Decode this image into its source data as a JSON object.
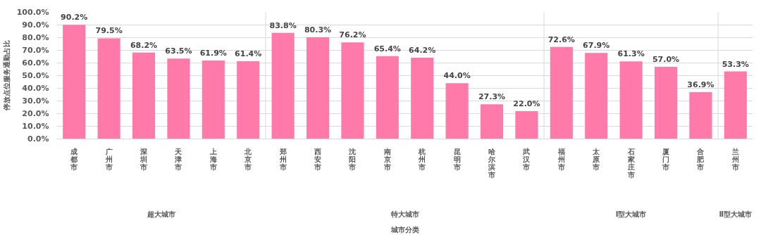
{
  "chart_data": {
    "type": "bar",
    "ylabel": "停放点位服务通勤占比",
    "categories": [
      "成都市",
      "广州市",
      "深圳市",
      "天津市",
      "上海市",
      "北京市",
      "郑州市",
      "西安市",
      "沈阳市",
      "南京市",
      "杭州市",
      "昆明市",
      "哈尔滨市",
      "武汉市",
      "福州市",
      "太原市",
      "石家庄市",
      "厦门市",
      "合肥市",
      "兰州市"
    ],
    "values": [
      90.2,
      79.5,
      68.2,
      63.5,
      61.9,
      61.4,
      83.8,
      80.3,
      76.2,
      65.4,
      64.2,
      44.0,
      27.3,
      22.0,
      72.6,
      67.9,
      61.3,
      57.0,
      36.9,
      53.3
    ],
    "value_labels": [
      "90.2%",
      "79.5%",
      "68.2%",
      "63.5%",
      "61.9%",
      "61.4%",
      "83.8%",
      "80.3%",
      "76.2%",
      "65.4%",
      "64.2%",
      "44.0%",
      "27.3%",
      "22.0%",
      "72.6%",
      "67.9%",
      "61.3%",
      "57.0%",
      "36.9%",
      "53.3%"
    ],
    "color": "#ff7aa8",
    "ylim": [
      0,
      100
    ],
    "yticks": [
      {
        "value": 0,
        "label": "0.0%"
      },
      {
        "value": 10,
        "label": "10.0%"
      },
      {
        "value": 20,
        "label": "20.0%"
      },
      {
        "value": 30,
        "label": "30.0%"
      },
      {
        "value": 40,
        "label": "40.0%"
      },
      {
        "value": 50,
        "label": "50.0%"
      },
      {
        "value": 60,
        "label": "60.0%"
      },
      {
        "value": 70,
        "label": "70.0%"
      },
      {
        "value": 80,
        "label": "80.0%"
      },
      {
        "value": 90,
        "label": "90.0%"
      },
      {
        "value": 100,
        "label": "100.0%"
      }
    ],
    "grid": "y",
    "annotations": [
      "超大城市",
      "特大城市",
      "Ⅰ型大城市",
      "Ⅱ型大城市",
      "城市分类"
    ]
  }
}
